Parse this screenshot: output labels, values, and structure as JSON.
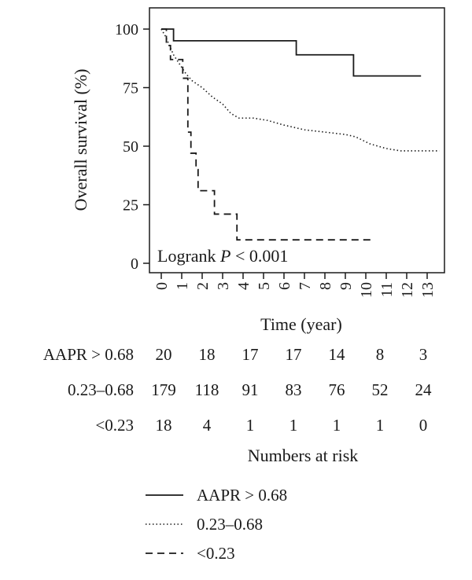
{
  "chart_data": {
    "type": "line",
    "xlabel": "Time (year)",
    "ylabel": "Overall survival (%)",
    "xlim": [
      0,
      13.8
    ],
    "ylim": [
      -5,
      103
    ],
    "xticks": [
      0,
      1,
      2,
      3,
      4,
      5,
      6,
      7,
      8,
      9,
      10,
      11,
      12,
      13
    ],
    "yticks": [
      0,
      25,
      50,
      75,
      100
    ],
    "grid": false,
    "annotation": {
      "prefix": "Logrank ",
      "italic": "P",
      "suffix": " < 0.001"
    },
    "series": [
      {
        "name": "AAPR > 0.68",
        "style": "solid",
        "steps": [
          [
            0,
            100
          ],
          [
            0.6,
            95
          ],
          [
            6.6,
            89
          ],
          [
            9.4,
            80
          ],
          [
            12.7,
            80
          ]
        ]
      },
      {
        "name": "0.23–0.68",
        "style": "dotted",
        "points": [
          [
            0,
            100
          ],
          [
            0.2,
            97
          ],
          [
            0.4,
            93
          ],
          [
            0.6,
            89
          ],
          [
            0.9,
            85
          ],
          [
            1.2,
            81
          ],
          [
            1.5,
            78
          ],
          [
            2,
            75
          ],
          [
            2.5,
            71
          ],
          [
            3,
            68
          ],
          [
            3.4,
            64
          ],
          [
            3.8,
            62
          ],
          [
            4.5,
            62
          ],
          [
            5.2,
            61
          ],
          [
            6,
            59
          ],
          [
            7,
            57
          ],
          [
            8,
            56
          ],
          [
            9,
            55
          ],
          [
            9.5,
            54
          ],
          [
            10.2,
            51
          ],
          [
            11,
            49
          ],
          [
            11.7,
            48
          ],
          [
            13.6,
            48
          ]
        ]
      },
      {
        "name": "<0.23",
        "style": "dashed",
        "steps": [
          [
            0,
            100
          ],
          [
            0.25,
            93
          ],
          [
            0.45,
            87
          ],
          [
            1.05,
            79
          ],
          [
            1.3,
            56
          ],
          [
            1.45,
            47
          ],
          [
            1.7,
            40
          ],
          [
            1.8,
            31
          ],
          [
            2.6,
            21
          ],
          [
            3.7,
            10
          ],
          [
            10.3,
            10
          ]
        ]
      }
    ],
    "risk_table": {
      "title": "Numbers at risk",
      "times": [
        0,
        2,
        4,
        6,
        8,
        10,
        12
      ],
      "rows": [
        {
          "label": "AAPR > 0.68",
          "values": [
            20,
            18,
            17,
            17,
            14,
            8,
            3
          ]
        },
        {
          "label": "0.23–0.68",
          "values": [
            179,
            118,
            91,
            83,
            76,
            52,
            24
          ]
        },
        {
          "label": "<0.23",
          "values": [
            18,
            4,
            1,
            1,
            1,
            1,
            0
          ]
        }
      ]
    },
    "legend": {
      "position": "bottom",
      "entries": [
        {
          "label": "AAPR > 0.68",
          "style": "solid"
        },
        {
          "label": "0.23–0.68",
          "style": "dotted"
        },
        {
          "label": "<0.23",
          "style": "dashed"
        }
      ]
    }
  }
}
